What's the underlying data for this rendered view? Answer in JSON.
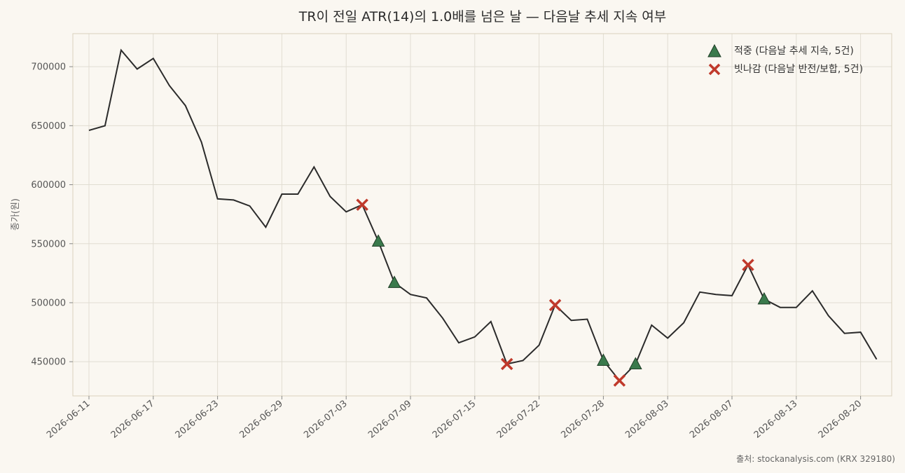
{
  "chart_data": {
    "type": "line",
    "title": "TR이 전일 ATR(14)의 1.0배를 넘은 날 — 다음날 추세 지속 여부",
    "ylabel": "종가(원)",
    "xlabel": "",
    "source": "출처: stockanalysis.com (KRX 329180)",
    "ylim": [
      421000,
      728000
    ],
    "yticks": [
      450000,
      500000,
      550000,
      600000,
      650000,
      700000
    ],
    "yticklabels": [
      "450000",
      "500000",
      "550000",
      "600000",
      "650000",
      "700000"
    ],
    "xticks": [
      {
        "index": 0,
        "label": "2026-06-11"
      },
      {
        "index": 4,
        "label": "2026-06-17"
      },
      {
        "index": 8,
        "label": "2026-06-23"
      },
      {
        "index": 12,
        "label": "2026-06-29"
      },
      {
        "index": 16,
        "label": "2026-07-03"
      },
      {
        "index": 20,
        "label": "2026-07-09"
      },
      {
        "index": 24,
        "label": "2026-07-15"
      },
      {
        "index": 28,
        "label": "2026-07-22"
      },
      {
        "index": 32,
        "label": "2026-07-28"
      },
      {
        "index": 36,
        "label": "2026-08-03"
      },
      {
        "index": 40,
        "label": "2026-08-07"
      },
      {
        "index": 44,
        "label": "2026-08-13"
      },
      {
        "index": 48,
        "label": "2026-08-20"
      }
    ],
    "grid": true,
    "legend_position": "top-right",
    "series": [
      {
        "values": [
          646000,
          650000,
          714000,
          698000,
          707000,
          684000,
          667000,
          636000,
          588000,
          587000,
          582000,
          564000,
          592000,
          592000,
          615000,
          590000,
          577000,
          583000,
          552000,
          517000,
          507000,
          504000,
          487000,
          466000,
          471000,
          484000,
          448000,
          451000,
          464000,
          498000,
          485000,
          486000,
          451000,
          434000,
          448000,
          481000,
          470000,
          483000,
          509000,
          507000,
          506000,
          532000,
          503000,
          496000,
          496000,
          510000,
          489000,
          474000,
          475000,
          452000
        ]
      }
    ],
    "markers": {
      "hit": {
        "label": "적중 (다음날 추세 지속, 5건)",
        "color": "#3a7a4c",
        "points": [
          {
            "index": 18,
            "value": 552000
          },
          {
            "index": 19,
            "value": 517000
          },
          {
            "index": 32,
            "value": 451000
          },
          {
            "index": 34,
            "value": 448000
          },
          {
            "index": 42,
            "value": 503000
          }
        ]
      },
      "miss": {
        "label": "빗나감 (다음날 반전/보합, 5건)",
        "color": "#c0392b",
        "points": [
          {
            "index": 17,
            "value": 583000
          },
          {
            "index": 26,
            "value": 448000
          },
          {
            "index": 29,
            "value": 498000
          },
          {
            "index": 33,
            "value": 434000
          },
          {
            "index": 41,
            "value": 532000
          }
        ]
      }
    }
  },
  "colors": {
    "line": "#2b2b2b",
    "grid": "#e1ddd2",
    "frame": "#d9d2bd",
    "plot_bg": "#faf7f1"
  }
}
